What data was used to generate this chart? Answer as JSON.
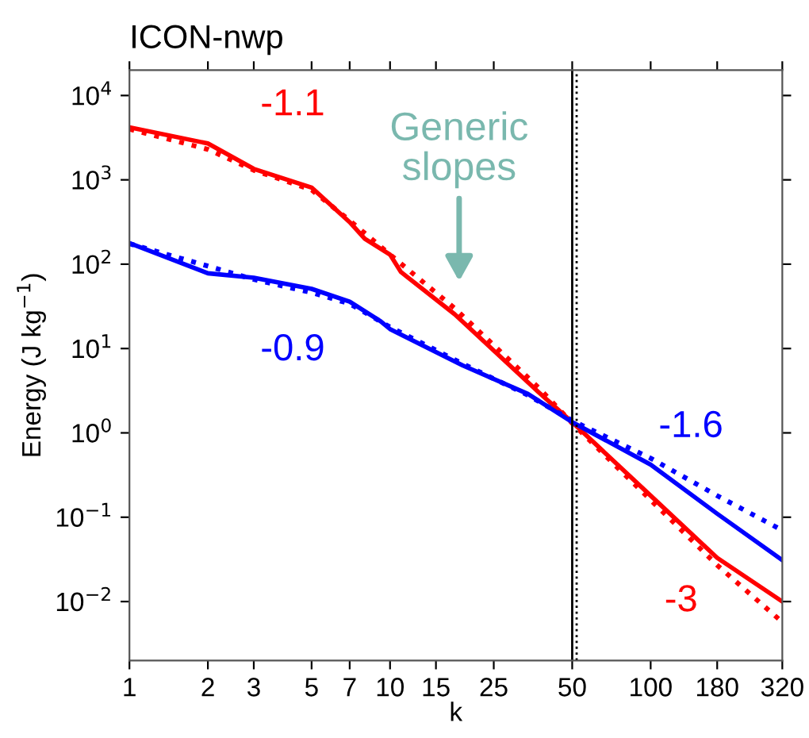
{
  "chart_data": {
    "type": "line",
    "title": "ICON-nwp",
    "xlabel": "k",
    "ylabel": "Energy (J kg$^{−1}$)",
    "log": "xy",
    "xlim": [
      1,
      320
    ],
    "ylim": [
      0.002,
      20000
    ],
    "xticks": [
      1,
      2,
      3,
      5,
      7,
      10,
      15,
      25,
      50,
      100,
      180,
      320
    ],
    "yticks": [
      {
        "value": 0.01,
        "label": "10$^{−2}$"
      },
      {
        "value": 0.1,
        "label": "10$^{−1}$"
      },
      {
        "value": 1,
        "label": "10$^{0}$"
      },
      {
        "value": 10,
        "label": "10$^{1}$"
      },
      {
        "value": 100,
        "label": "10$^{2}$"
      },
      {
        "value": 1000,
        "label": "10$^{3}$"
      },
      {
        "value": 10000,
        "label": "10$^{4}$"
      }
    ],
    "grid": false,
    "series": [
      {
        "color": "#ff0000",
        "line_style": "solid",
        "x": [
          1,
          2,
          3,
          5,
          7,
          8,
          10,
          11,
          17.7,
          37.3,
          50,
          100,
          180,
          320
        ],
        "values": [
          4200,
          2700,
          1350,
          810,
          315,
          200,
          130,
          81,
          25.5,
          3.0,
          1.34,
          0.18,
          0.033,
          0.01
        ]
      },
      {
        "color": "#ff0000",
        "line_style": "dotted",
        "x": [
          1,
          2,
          3,
          5,
          7,
          10,
          17.7,
          37.3,
          50,
          100,
          180,
          320
        ],
        "values": [
          4000,
          2300,
          1300,
          760,
          330,
          130,
          30,
          3.4,
          1.3,
          0.16,
          0.027,
          0.0057
        ]
      },
      {
        "color": "#0000ff",
        "line_style": "solid",
        "x": [
          1,
          2,
          3,
          5,
          7,
          9.2,
          10,
          19,
          33.8,
          50,
          100,
          180,
          320
        ],
        "values": [
          178,
          78,
          69,
          51,
          36,
          21,
          17,
          6.3,
          2.9,
          1.34,
          0.42,
          0.11,
          0.031
        ]
      },
      {
        "color": "#0000ff",
        "line_style": "dotted",
        "x": [
          1,
          2,
          3,
          5,
          7,
          10,
          19,
          33.8,
          50,
          100,
          180,
          320
        ],
        "values": [
          175,
          95,
          66,
          46,
          34,
          18,
          6.6,
          2.8,
          1.4,
          0.5,
          0.18,
          0.07
        ]
      }
    ],
    "ref_lines": [
      {
        "axis": "x",
        "value": 50,
        "color": "#000000",
        "line_style": "solid"
      },
      {
        "axis": "x",
        "value": 52,
        "color": "#000000",
        "line_style": "dotted"
      }
    ],
    "annotations": [
      "-1.1",
      "-0.9",
      "-1.6",
      "-3",
      "Generic slopes"
    ]
  }
}
